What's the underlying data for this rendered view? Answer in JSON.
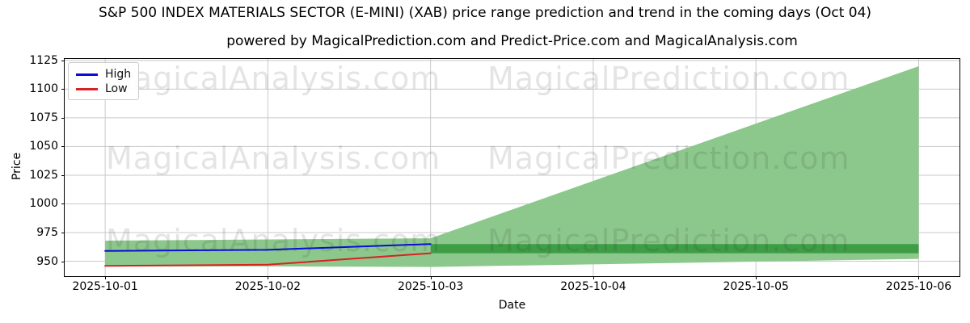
{
  "figure": {
    "title": "S&P 500 INDEX MATERIALS SECTOR (E-MINI) (XAB) price range prediction and trend in the coming days (Oct 04)",
    "subtitle": "powered by MagicalPrediction.com and Predict-Price.com and MagicalAnalysis.com"
  },
  "chart_data": {
    "type": "line",
    "title": "S&P 500 INDEX MATERIALS SECTOR (E-MINI) (XAB) price range prediction and trend in the coming days (Oct 04)",
    "subtitle": "powered by MagicalPrediction.com and Predict-Price.com and MagicalAnalysis.com",
    "xlabel": "Date",
    "ylabel": "Price",
    "x_categories": [
      "2025-10-01",
      "2025-10-02",
      "2025-10-03",
      "2025-10-04",
      "2025-10-05",
      "2025-10-06"
    ],
    "y_ticks": [
      950,
      975,
      1000,
      1025,
      1050,
      1075,
      1100,
      1125
    ],
    "xlim": [
      -0.249,
      5.251
    ],
    "ylim": [
      937,
      1126.3
    ],
    "grid": true,
    "legend_position": "upper-left",
    "series": [
      {
        "name": "High",
        "color": "#0b0bdb",
        "x": [
          0,
          1,
          2
        ],
        "values": [
          959,
          960,
          965
        ]
      },
      {
        "name": "Low",
        "color": "#d92121",
        "x": [
          0,
          1,
          2
        ],
        "values": [
          946,
          947,
          957
        ]
      }
    ],
    "prediction_band": {
      "x": [
        0,
        1,
        2,
        5
      ],
      "top": [
        968,
        969,
        970,
        1120
      ],
      "bottom": [
        945.5,
        945.5,
        945,
        952
      ],
      "color": "#8cc88c"
    },
    "trend_band": {
      "x": [
        2,
        5
      ],
      "top": [
        965,
        965
      ],
      "bottom": [
        957,
        957
      ],
      "color": "#3d9e46"
    },
    "watermarks": [
      {
        "text": "MagicalAnalysis.com",
        "row": 0,
        "col": 0
      },
      {
        "text": "MagicalPrediction.com",
        "row": 0,
        "col": 1
      },
      {
        "text": "MagicalAnalysis.com",
        "row": 1,
        "col": 0
      },
      {
        "text": "MagicalPrediction.com",
        "row": 1,
        "col": 1
      },
      {
        "text": "MagicalAnalysis.com",
        "row": 2,
        "col": 0
      },
      {
        "text": "MagicalPrediction.com",
        "row": 2,
        "col": 1
      }
    ]
  }
}
